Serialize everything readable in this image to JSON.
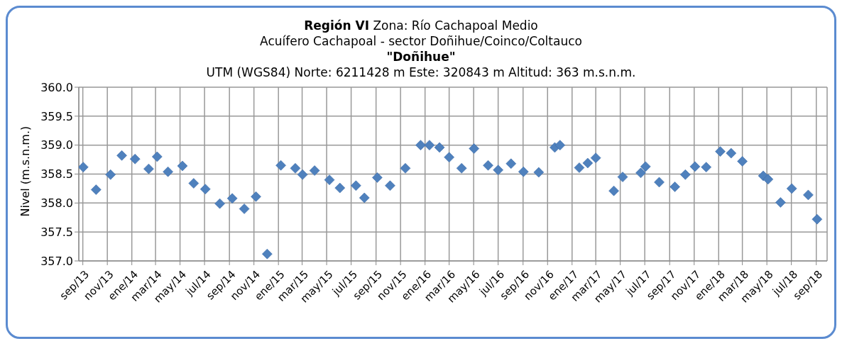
{
  "chart_data": {
    "type": "scatter",
    "title": "Región VI Zona: Río Cachapoal Medio\nAcuífero Cachapoal - sector Doñihue/Coinco/Coltauco\n\"Doñihue\"",
    "subtitle": "UTM (WGS84) Norte: 6211428 m  Este: 320843 m   Altitud: 363 m.s.n.m.",
    "ylabel": "Nivel (m.s.n.m.)",
    "x": [
      "2013-09-02",
      "2013-10-04",
      "2013-11-09",
      "2013-12-07",
      "2014-01-09",
      "2014-02-12",
      "2014-03-05",
      "2014-04-01",
      "2014-05-07",
      "2014-06-04",
      "2014-07-03",
      "2014-08-08",
      "2014-09-08",
      "2014-10-08",
      "2014-11-06",
      "2014-12-04",
      "2015-01-07",
      "2015-02-12",
      "2015-03-02",
      "2015-04-01",
      "2015-05-08",
      "2015-06-03",
      "2015-07-13",
      "2015-08-03",
      "2015-09-04",
      "2015-10-06",
      "2015-11-13",
      "2015-12-21",
      "2016-01-12",
      "2016-02-06",
      "2016-03-01",
      "2016-04-01",
      "2016-05-02",
      "2016-06-06",
      "2016-07-01",
      "2016-08-02",
      "2016-09-02",
      "2016-10-10",
      "2016-11-19",
      "2016-12-02",
      "2017-01-19",
      "2017-02-09",
      "2017-03-01",
      "2017-04-15",
      "2017-05-07",
      "2017-06-21",
      "2017-07-03",
      "2017-08-06",
      "2017-09-14",
      "2017-10-10",
      "2017-11-03",
      "2017-12-01",
      "2018-01-05",
      "2018-02-01",
      "2018-03-01",
      "2018-04-22",
      "2018-05-04",
      "2018-06-04",
      "2018-07-02",
      "2018-08-12",
      "2018-09-03"
    ],
    "series": [
      {
        "color": "#4f81bd",
        "values": [
          358.62,
          358.23,
          358.49,
          358.82,
          358.76,
          358.59,
          358.8,
          358.54,
          358.64,
          358.34,
          358.24,
          357.99,
          358.08,
          357.9,
          358.11,
          357.12,
          358.65,
          358.6,
          358.49,
          358.56,
          358.4,
          358.26,
          358.3,
          358.09,
          358.44,
          358.3,
          358.6,
          359.0,
          359.0,
          358.96,
          358.79,
          358.6,
          358.94,
          358.65,
          358.57,
          358.68,
          358.54,
          358.53,
          358.96,
          359.0,
          358.61,
          358.69,
          358.78,
          358.21,
          358.45,
          358.52,
          358.63,
          358.36,
          358.28,
          358.49,
          358.63,
          358.62,
          358.89,
          358.86,
          358.72,
          358.47,
          358.41,
          358.01,
          358.25,
          358.14,
          357.72
        ]
      }
    ],
    "xlim": [
      "2013-08-22",
      "2018-09-28"
    ],
    "xticks": [
      {
        "value": "2013-09",
        "label": "sep/13"
      },
      {
        "value": "2013-11",
        "label": "nov/13"
      },
      {
        "value": "2014-01",
        "label": "ene/14"
      },
      {
        "value": "2014-03",
        "label": "mar/14"
      },
      {
        "value": "2014-05",
        "label": "may/14"
      },
      {
        "value": "2014-07",
        "label": "jul/14"
      },
      {
        "value": "2014-09",
        "label": "sep/14"
      },
      {
        "value": "2014-11",
        "label": "nov/14"
      },
      {
        "value": "2015-01",
        "label": "ene/15"
      },
      {
        "value": "2015-03",
        "label": "mar/15"
      },
      {
        "value": "2015-05",
        "label": "may/15"
      },
      {
        "value": "2015-07",
        "label": "jul/15"
      },
      {
        "value": "2015-09",
        "label": "sep/15"
      },
      {
        "value": "2015-11",
        "label": "nov/15"
      },
      {
        "value": "2016-01",
        "label": "ene/16"
      },
      {
        "value": "2016-03",
        "label": "mar/16"
      },
      {
        "value": "2016-05",
        "label": "may/16"
      },
      {
        "value": "2016-07",
        "label": "jul/16"
      },
      {
        "value": "2016-09",
        "label": "sep/16"
      },
      {
        "value": "2016-11",
        "label": "nov/16"
      },
      {
        "value": "2017-01",
        "label": "ene/17"
      },
      {
        "value": "2017-03",
        "label": "mar/17"
      },
      {
        "value": "2017-05",
        "label": "may/17"
      },
      {
        "value": "2017-07",
        "label": "jul/17"
      },
      {
        "value": "2017-09",
        "label": "sep/17"
      },
      {
        "value": "2017-11",
        "label": "nov/17"
      },
      {
        "value": "2018-01",
        "label": "ene/18"
      },
      {
        "value": "2018-03",
        "label": "mar/18"
      },
      {
        "value": "2018-05",
        "label": "may/18"
      },
      {
        "value": "2018-07",
        "label": "jul/18"
      },
      {
        "value": "2018-09",
        "label": "sep/18"
      }
    ],
    "ylim": [
      357.0,
      360.0
    ],
    "yticks": [
      {
        "value": 357,
        "label": "357.0"
      },
      {
        "value": 357.5,
        "label": "357.5"
      },
      {
        "value": 358,
        "label": "358.0"
      },
      {
        "value": 358.5,
        "label": "358.5"
      },
      {
        "value": 359,
        "label": "359.0"
      },
      {
        "value": 359.5,
        "label": "359.5"
      },
      {
        "value": 360,
        "label": "360.0"
      }
    ],
    "grid": true,
    "marker": "diamond"
  }
}
